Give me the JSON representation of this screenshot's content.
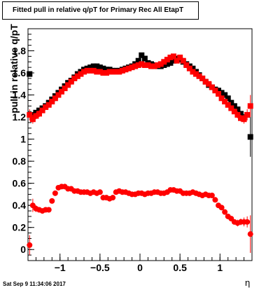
{
  "title": "Fitted pull in relative q/pT for Primary Rec All EtapT",
  "timestamp": "Sat Sep  9 11:34:06 2017",
  "chart_data": {
    "type": "scatter",
    "xlabel": "η",
    "ylabel": "pull in relative q/pT",
    "xlim": [
      -1.4,
      1.4
    ],
    "ylim": [
      -0.1,
      2.0
    ],
    "x_ticks": [
      -1,
      -0.5,
      0,
      0.5,
      1
    ],
    "x_tick_labels": [
      "−1",
      "−0.5",
      "0",
      "0.5",
      "1"
    ],
    "y_ticks": [
      0,
      0.2,
      0.4,
      0.6,
      0.8,
      1,
      1.2,
      1.4,
      1.6,
      1.8
    ],
    "y_tick_labels": [
      "0",
      "0.2",
      "0.4",
      "0.6",
      "0.8",
      "1",
      "1.2",
      "1.4",
      "1.6",
      "1.8"
    ],
    "grid": false,
    "series": [
      {
        "marker": "square",
        "color": "#000000",
        "x": [
          -1.38,
          -1.34,
          -1.3,
          -1.26,
          -1.22,
          -1.18,
          -1.14,
          -1.1,
          -1.06,
          -1.02,
          -0.98,
          -0.94,
          -0.9,
          -0.86,
          -0.82,
          -0.78,
          -0.74,
          -0.7,
          -0.66,
          -0.62,
          -0.58,
          -0.54,
          -0.5,
          -0.46,
          -0.42,
          -0.38,
          -0.34,
          -0.3,
          -0.26,
          -0.22,
          -0.18,
          -0.14,
          -0.1,
          -0.06,
          -0.02,
          0.02,
          0.06,
          0.1,
          0.14,
          0.18,
          0.22,
          0.26,
          0.3,
          0.34,
          0.38,
          0.42,
          0.46,
          0.5,
          0.54,
          0.58,
          0.62,
          0.66,
          0.7,
          0.74,
          0.78,
          0.82,
          0.86,
          0.9,
          0.94,
          0.98,
          1.02,
          1.06,
          1.1,
          1.14,
          1.18,
          1.22,
          1.26,
          1.3,
          1.34,
          1.38
        ],
        "y": [
          1.59,
          1.22,
          1.24,
          1.26,
          1.28,
          1.3,
          1.33,
          1.36,
          1.39,
          1.42,
          1.45,
          1.48,
          1.51,
          1.53,
          1.56,
          1.59,
          1.61,
          1.63,
          1.64,
          1.65,
          1.66,
          1.66,
          1.65,
          1.64,
          1.63,
          1.63,
          1.62,
          1.62,
          1.62,
          1.63,
          1.64,
          1.65,
          1.66,
          1.68,
          1.71,
          1.76,
          1.73,
          1.69,
          1.68,
          1.67,
          1.66,
          1.66,
          1.67,
          1.68,
          1.69,
          1.71,
          1.73,
          1.72,
          1.7,
          1.68,
          1.66,
          1.64,
          1.61,
          1.58,
          1.55,
          1.52,
          1.49,
          1.47,
          1.45,
          1.44,
          1.42,
          1.4,
          1.37,
          1.33,
          1.3,
          1.27,
          1.23,
          1.2,
          1.22,
          1.02
        ],
        "err": [
          0,
          0,
          0,
          0,
          0,
          0,
          0,
          0,
          0,
          0,
          0,
          0,
          0,
          0,
          0,
          0,
          0,
          0,
          0,
          0,
          0,
          0,
          0,
          0,
          0,
          0,
          0,
          0,
          0,
          0,
          0,
          0,
          0,
          0,
          0,
          0,
          0,
          0,
          0,
          0,
          0,
          0,
          0,
          0,
          0,
          0,
          0,
          0,
          0,
          0,
          0,
          0,
          0,
          0,
          0,
          0,
          0,
          0,
          0,
          0,
          0,
          0,
          0,
          0,
          0,
          0,
          0,
          0,
          0,
          0.18
        ]
      },
      {
        "marker": "square",
        "color": "#ff0000",
        "x": [
          -1.38,
          -1.34,
          -1.3,
          -1.26,
          -1.22,
          -1.18,
          -1.14,
          -1.1,
          -1.06,
          -1.02,
          -0.98,
          -0.94,
          -0.9,
          -0.86,
          -0.82,
          -0.78,
          -0.74,
          -0.7,
          -0.66,
          -0.62,
          -0.58,
          -0.54,
          -0.5,
          -0.46,
          -0.42,
          -0.38,
          -0.34,
          -0.3,
          -0.26,
          -0.22,
          -0.18,
          -0.14,
          -0.1,
          -0.06,
          -0.02,
          0.02,
          0.06,
          0.1,
          0.14,
          0.18,
          0.22,
          0.26,
          0.3,
          0.34,
          0.38,
          0.42,
          0.46,
          0.5,
          0.54,
          0.58,
          0.62,
          0.66,
          0.7,
          0.74,
          0.78,
          0.82,
          0.86,
          0.9,
          0.94,
          0.98,
          1.02,
          1.06,
          1.1,
          1.14,
          1.18,
          1.22,
          1.26,
          1.3,
          1.34,
          1.38
        ],
        "y": [
          1.22,
          1.18,
          1.21,
          1.23,
          1.26,
          1.29,
          1.31,
          1.34,
          1.37,
          1.4,
          1.43,
          1.46,
          1.49,
          1.52,
          1.55,
          1.57,
          1.59,
          1.61,
          1.62,
          1.62,
          1.62,
          1.61,
          1.61,
          1.6,
          1.6,
          1.61,
          1.61,
          1.61,
          1.61,
          1.62,
          1.63,
          1.64,
          1.65,
          1.66,
          1.67,
          1.68,
          1.67,
          1.67,
          1.66,
          1.66,
          1.67,
          1.68,
          1.7,
          1.72,
          1.74,
          1.75,
          1.71,
          1.74,
          1.71,
          1.67,
          1.64,
          1.61,
          1.59,
          1.57,
          1.55,
          1.52,
          1.5,
          1.47,
          1.44,
          1.41,
          1.37,
          1.34,
          1.31,
          1.28,
          1.25,
          1.22,
          1.19,
          1.18,
          1.22,
          1.3
        ],
        "err": [
          0.05,
          0.04,
          0.03,
          0.03,
          0.02,
          0.02,
          0.02,
          0.02,
          0.02,
          0.02,
          0.02,
          0.02,
          0.02,
          0.02,
          0.02,
          0.02,
          0.02,
          0.02,
          0.02,
          0.02,
          0.02,
          0.02,
          0.02,
          0.02,
          0.02,
          0.02,
          0.02,
          0.02,
          0.02,
          0.02,
          0.02,
          0.02,
          0.02,
          0.02,
          0.02,
          0.02,
          0.02,
          0.02,
          0.02,
          0.02,
          0.02,
          0.02,
          0.02,
          0.02,
          0.02,
          0.02,
          0.02,
          0.02,
          0.02,
          0.02,
          0.02,
          0.02,
          0.02,
          0.02,
          0.02,
          0.02,
          0.02,
          0.02,
          0.02,
          0.02,
          0.02,
          0.02,
          0.02,
          0.02,
          0.02,
          0.03,
          0.03,
          0.04,
          0.05,
          0.1
        ]
      },
      {
        "marker": "circle",
        "color": "#ff0000",
        "x": [
          -1.38,
          -1.34,
          -1.3,
          -1.26,
          -1.22,
          -1.18,
          -1.14,
          -1.1,
          -1.06,
          -1.02,
          -0.98,
          -0.94,
          -0.9,
          -0.86,
          -0.82,
          -0.78,
          -0.74,
          -0.7,
          -0.66,
          -0.62,
          -0.58,
          -0.54,
          -0.5,
          -0.46,
          -0.42,
          -0.38,
          -0.34,
          -0.3,
          -0.26,
          -0.22,
          -0.18,
          -0.14,
          -0.1,
          -0.06,
          -0.02,
          0.02,
          0.06,
          0.1,
          0.14,
          0.18,
          0.22,
          0.26,
          0.3,
          0.34,
          0.38,
          0.42,
          0.46,
          0.5,
          0.54,
          0.58,
          0.62,
          0.66,
          0.7,
          0.74,
          0.78,
          0.82,
          0.86,
          0.9,
          0.94,
          0.98,
          1.02,
          1.06,
          1.1,
          1.14,
          1.18,
          1.22,
          1.26,
          1.3,
          1.34,
          1.38
        ],
        "y": [
          0.04,
          0.4,
          0.37,
          0.36,
          0.35,
          0.36,
          0.36,
          0.44,
          0.51,
          0.56,
          0.57,
          0.57,
          0.55,
          0.55,
          0.53,
          0.53,
          0.52,
          0.52,
          0.52,
          0.51,
          0.52,
          0.51,
          0.52,
          0.47,
          0.47,
          0.46,
          0.47,
          0.52,
          0.53,
          0.52,
          0.52,
          0.51,
          0.5,
          0.5,
          0.51,
          0.51,
          0.5,
          0.51,
          0.51,
          0.52,
          0.52,
          0.51,
          0.51,
          0.52,
          0.54,
          0.54,
          0.53,
          0.53,
          0.51,
          0.51,
          0.51,
          0.52,
          0.51,
          0.5,
          0.49,
          0.5,
          0.49,
          0.49,
          0.45,
          0.4,
          0.38,
          0.34,
          0.3,
          0.28,
          0.25,
          0.24,
          0.25,
          0.25,
          0.25,
          0.14
        ],
        "err": [
          0.09,
          0.06,
          0.03,
          0.02,
          0.02,
          0.02,
          0.02,
          0.02,
          0.02,
          0.02,
          0.02,
          0.02,
          0.02,
          0.02,
          0.02,
          0.02,
          0.02,
          0.02,
          0.02,
          0.02,
          0.02,
          0.02,
          0.02,
          0.02,
          0.02,
          0.02,
          0.02,
          0.02,
          0.02,
          0.02,
          0.02,
          0.02,
          0.02,
          0.02,
          0.02,
          0.02,
          0.02,
          0.02,
          0.02,
          0.02,
          0.02,
          0.02,
          0.02,
          0.02,
          0.02,
          0.02,
          0.02,
          0.02,
          0.02,
          0.02,
          0.02,
          0.02,
          0.02,
          0.02,
          0.02,
          0.02,
          0.02,
          0.02,
          0.02,
          0.02,
          0.02,
          0.02,
          0.02,
          0.02,
          0.02,
          0.03,
          0.03,
          0.04,
          0.05,
          0.17
        ]
      }
    ]
  }
}
